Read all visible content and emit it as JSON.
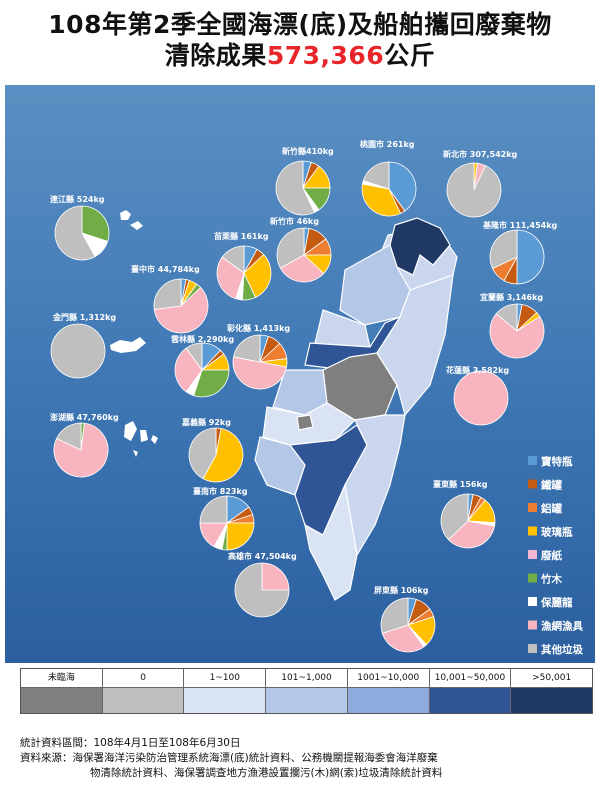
{
  "header": {
    "line1": "108年第2季全國海漂(底)及船舶攜回廢棄物",
    "line2_prefix": "清除成果",
    "line2_amount": "573,366",
    "line2_suffix": "公斤"
  },
  "colors": {
    "寶特瓶": "#5b9bd5",
    "鐵罐": "#c55a11",
    "鋁罐": "#ed7d31",
    "玻璃瓶": "#ffc000",
    "廢紙": "#f4b6d2",
    "竹木": "#70ad47",
    "保麗龍": "#ffffff",
    "漁網漁具": "#f8b5c0",
    "其他垃圾": "#bfbfbf"
  },
  "chart_data": {
    "type": "pie",
    "categories": [
      "寶特瓶",
      "鐵罐",
      "鋁罐",
      "玻璃瓶",
      "廢紙",
      "竹木",
      "保麗龍",
      "漁網漁具",
      "其他垃圾"
    ],
    "counties": [
      {
        "label": "連江縣 524kg",
        "values": [
          0,
          0,
          0,
          0,
          0,
          30,
          12,
          0,
          58
        ]
      },
      {
        "label": "新竹縣410kg",
        "values": [
          5,
          5,
          0,
          15,
          0,
          15,
          3,
          0,
          57
        ]
      },
      {
        "label": "桃園市 261kg",
        "values": [
          40,
          3,
          0,
          35,
          0,
          0,
          2,
          0,
          20
        ]
      },
      {
        "label": "新北市 307,542kg",
        "values": [
          0,
          0,
          0,
          2,
          0,
          0,
          0,
          5,
          93
        ]
      },
      {
        "label": "新竹市 46kg",
        "values": [
          3,
          12,
          10,
          12,
          0,
          0,
          0,
          30,
          33
        ]
      },
      {
        "label": "苗栗縣 161kg",
        "values": [
          8,
          5,
          0,
          30,
          0,
          8,
          4,
          30,
          15
        ]
      },
      {
        "label": "基隆市 111,454kg",
        "values": [
          50,
          8,
          10,
          0,
          0,
          0,
          0,
          0,
          32
        ]
      },
      {
        "label": "臺中市 44,784kg",
        "values": [
          3,
          2,
          0,
          5,
          0,
          3,
          0,
          60,
          27
        ]
      },
      {
        "label": "宜蘭縣 3,146kg",
        "values": [
          3,
          10,
          0,
          3,
          0,
          0,
          0,
          70,
          14
        ]
      },
      {
        "label": "金門縣 1,312kg",
        "values": [
          0,
          0,
          0,
          0,
          0,
          0,
          0,
          0,
          100
        ]
      },
      {
        "label": "雲林縣 2,290kg",
        "values": [
          12,
          3,
          0,
          10,
          0,
          30,
          5,
          30,
          10
        ]
      },
      {
        "label": "彰化縣 1,413kg",
        "values": [
          5,
          8,
          10,
          5,
          0,
          0,
          0,
          50,
          22
        ]
      },
      {
        "label": "花蓮縣 3,582kg",
        "values": [
          0,
          0,
          0,
          0,
          0,
          0,
          0,
          100,
          0
        ]
      },
      {
        "label": "澎湖縣 47,760kg",
        "values": [
          0,
          0,
          0,
          0,
          0,
          2,
          0,
          80,
          18
        ]
      },
      {
        "label": "嘉義縣 92kg",
        "values": [
          0,
          3,
          0,
          55,
          0,
          0,
          0,
          0,
          42
        ]
      },
      {
        "label": "臺南市 823kg",
        "values": [
          15,
          5,
          5,
          25,
          0,
          3,
          5,
          17,
          25
        ]
      },
      {
        "label": "臺東縣 156kg",
        "values": [
          3,
          5,
          3,
          15,
          0,
          0,
          2,
          35,
          37
        ]
      },
      {
        "label": "高雄市 47,504kg",
        "values": [
          0,
          0,
          0,
          0,
          0,
          0,
          0,
          25,
          75
        ]
      },
      {
        "label": "屏東縣 106kg",
        "values": [
          5,
          10,
          5,
          18,
          0,
          0,
          2,
          30,
          30
        ]
      }
    ],
    "legend": [
      "寶特瓶",
      "鐵罐",
      "鋁罐",
      "玻璃瓶",
      "廢紙",
      "竹木",
      "保麗龍",
      "漁網漁具",
      "其他垃圾"
    ]
  },
  "scale": [
    {
      "label": "未臨海",
      "color": "#7f7f7f"
    },
    {
      "label": "0",
      "color": "#bfbfbf"
    },
    {
      "label": "1~100",
      "color": "#dae3f3"
    },
    {
      "label": "101~1,000",
      "color": "#b4c7e7"
    },
    {
      "label": "1001~10,000",
      "color": "#8faadc"
    },
    {
      "label": "10,001~50,000",
      "color": "#2f5597"
    },
    {
      "label": ">50,001",
      "color": "#1f3864"
    }
  ],
  "notes": {
    "period": "統計資料區間：108年4月1日至108年6月30日",
    "source_line1": "資料來源：海保署海洋污染防治管理系統海漂(底)統計資料、公務機關提報海委會海洋廢棄",
    "source_line2": "物清除統計資料、海保署調查地方漁港設置攔污(木)網(索)垃圾清除統計資料"
  }
}
